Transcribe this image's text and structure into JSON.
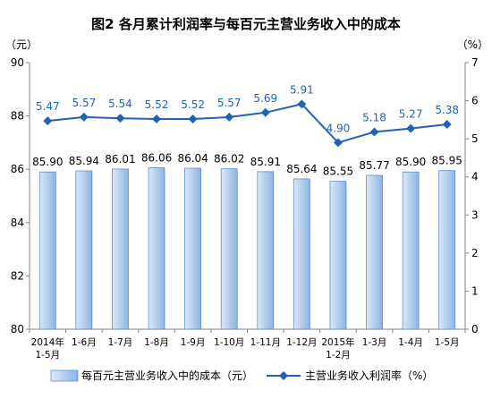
{
  "chart_data": {
    "type": "bar",
    "title": "图2 各月累计利润率与每百元主营业务收入中的成本",
    "categories": [
      "1-5月",
      "1-6月",
      "1-7月",
      "1-8月",
      "1-9月",
      "1-10月",
      "1-11月",
      "1-12月",
      "1-2月",
      "1-3月",
      "1-4月",
      "1-5月"
    ],
    "year_labels": [
      {
        "text": "2014年",
        "category_index": 0
      },
      {
        "text": "2015年",
        "category_index": 8
      }
    ],
    "series": [
      {
        "name": "每百元主营业务收入中的成本（元）",
        "type": "bar",
        "axis": "left",
        "color": "#8db3e2",
        "values": [
          85.9,
          85.94,
          86.01,
          86.06,
          86.04,
          86.02,
          85.91,
          85.64,
          85.55,
          85.77,
          85.9,
          85.95
        ]
      },
      {
        "name": "主营业务收入利润率（%）",
        "type": "line",
        "axis": "right",
        "marker": "diamond",
        "color": "#2162b5",
        "values": [
          5.47,
          5.57,
          5.54,
          5.52,
          5.52,
          5.57,
          5.69,
          5.91,
          4.9,
          5.18,
          5.27,
          5.38
        ]
      }
    ],
    "y_left": {
      "label": "（元）",
      "ylim": [
        80,
        90
      ],
      "ticks": [
        80,
        82,
        84,
        86,
        88,
        90
      ]
    },
    "y_right": {
      "label": "（%）",
      "ylim": [
        0,
        7
      ],
      "ticks": [
        0,
        1,
        2,
        3,
        4,
        5,
        6,
        7
      ]
    },
    "grid": false,
    "legend": "bottom"
  }
}
